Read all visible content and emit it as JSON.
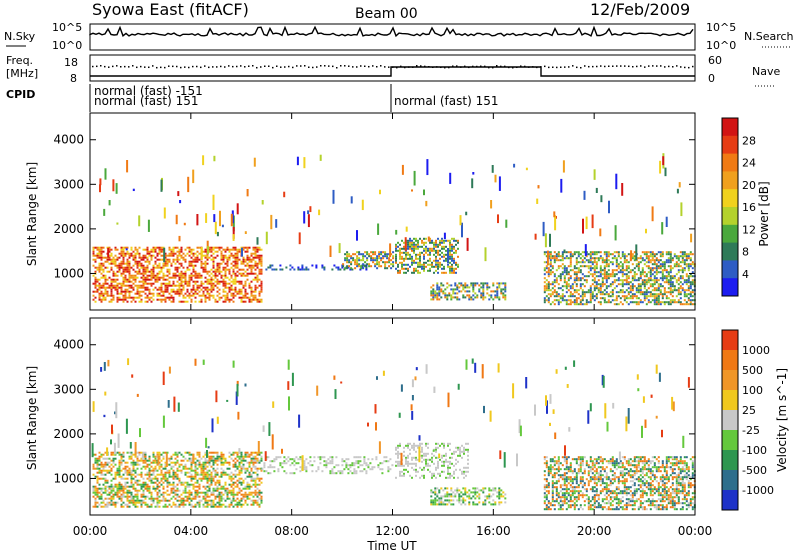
{
  "header": {
    "station": "Syowa East (fitACF)",
    "beam": "Beam 00",
    "date": "12/Feb/2009"
  },
  "top_panels": {
    "nsky_label": "N.Sky",
    "nsearch_label": "N.Search",
    "nsky_ticks": [
      "10^5",
      "10^0"
    ],
    "nsearch_ticks": [
      "10^5",
      "10^0"
    ],
    "freq_label_1": "Freq.",
    "freq_label_2": "[MHz]",
    "freq_ticks": [
      "18",
      "8"
    ],
    "nave_label": "Nave",
    "nave_ticks": [
      "60",
      "0"
    ],
    "cpid_label": "CPID",
    "cpid_entries": [
      "normal (fast) -151",
      "normal (fast) 151",
      "normal (fast) 151"
    ]
  },
  "chart_data": [
    {
      "type": "heatmap",
      "name": "Power",
      "ylabel": "Slant Range [km]",
      "ylim": [
        180,
        4600
      ],
      "yticks": [
        "1000",
        "2000",
        "3000",
        "4000"
      ],
      "xlim_hours": [
        0,
        24
      ],
      "colorbar": {
        "label": "Power [dB]",
        "ticks": [
          "4",
          "8",
          "12",
          "16",
          "20",
          "24",
          "28"
        ],
        "colors": [
          "#1c1cf0",
          "#2e5cc4",
          "#2e7a58",
          "#4aa83c",
          "#b4d22c",
          "#f0d21e",
          "#f0a01e",
          "#f07a14",
          "#e63c14",
          "#d21414"
        ]
      },
      "echo_regions": [
        {
          "t0": 0.1,
          "t1": 6.8,
          "r0": 350,
          "r1": 1600,
          "level": "high"
        },
        {
          "t0": 6.8,
          "t1": 11.0,
          "r0": 1100,
          "r1": 1200,
          "level": "low"
        },
        {
          "t0": 10.0,
          "t1": 12.0,
          "r0": 1100,
          "r1": 1500,
          "level": "mid"
        },
        {
          "t0": 12.1,
          "t1": 14.6,
          "r0": 1000,
          "r1": 1800,
          "level": "mid"
        },
        {
          "t0": 13.5,
          "t1": 16.5,
          "r0": 400,
          "r1": 800,
          "level": "mid"
        },
        {
          "t0": 18.0,
          "t1": 24.0,
          "r0": 300,
          "r1": 1500,
          "level": "mid"
        }
      ]
    },
    {
      "type": "heatmap",
      "name": "Velocity",
      "ylabel": "Slant Range [km]",
      "ylim": [
        180,
        4600
      ],
      "yticks": [
        "1000",
        "2000",
        "3000",
        "4000"
      ],
      "xlim_hours": [
        0,
        24
      ],
      "xticks": [
        "00:00",
        "04:00",
        "08:00",
        "12:00",
        "16:00",
        "20:00",
        "00:00"
      ],
      "xlabel": "Time UT",
      "colorbar": {
        "label": "Velocity [m s^-1]",
        "ticks": [
          "1000",
          "500",
          "100",
          "25",
          "-25",
          "-100",
          "-500",
          "-1000"
        ],
        "colors": [
          "#1e32c8",
          "#2e6e8c",
          "#2e9650",
          "#64c83c",
          "#c8c8c8",
          "#f0c81e",
          "#f09628",
          "#f07814",
          "#e63c14"
        ]
      },
      "echo_regions": [
        {
          "t0": 0.1,
          "t1": 6.8,
          "r0": 350,
          "r1": 1600,
          "level": "mixed-orange-green"
        },
        {
          "t0": 6.8,
          "t1": 12.0,
          "r0": 1100,
          "r1": 1500,
          "level": "gray"
        },
        {
          "t0": 12.1,
          "t1": 15.0,
          "r0": 1000,
          "r1": 1800,
          "level": "gray"
        },
        {
          "t0": 13.5,
          "t1": 16.5,
          "r0": 400,
          "r1": 800,
          "level": "green"
        },
        {
          "t0": 18.0,
          "t1": 24.0,
          "r0": 300,
          "r1": 1500,
          "level": "mixed-green-orange"
        }
      ]
    }
  ]
}
